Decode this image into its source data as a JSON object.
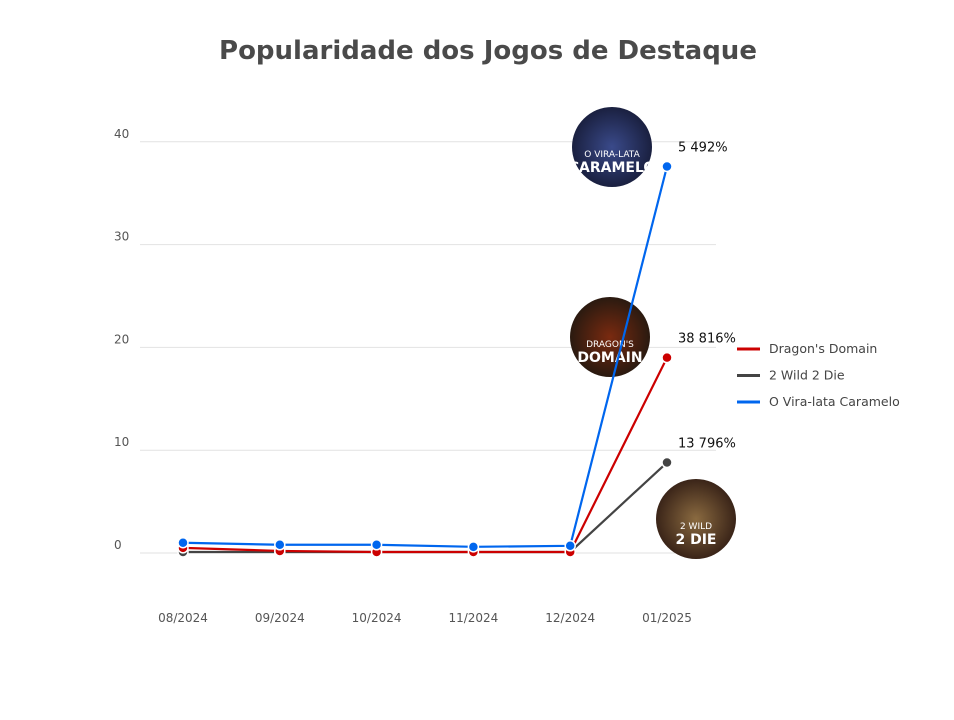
{
  "chart_data": {
    "type": "line",
    "title": "Popularidade dos Jogos de Destaque",
    "xlabel": "",
    "ylabel": "",
    "categories": [
      "08/2024",
      "09/2024",
      "10/2024",
      "11/2024",
      "12/2024",
      "01/2025"
    ],
    "ylim": [
      0,
      40
    ],
    "yticks": [
      0,
      10,
      20,
      30,
      40
    ],
    "grid": true,
    "legend_position": "right",
    "series": [
      {
        "name": "Dragon's Domain",
        "color": "#cc0000",
        "values": [
          0.5,
          0.2,
          0.1,
          0.1,
          0.1,
          19.0
        ],
        "end_label": "38 816%",
        "logo_text": [
          "DRAGON'S",
          "DOMAIN"
        ]
      },
      {
        "name": "2 Wild 2 Die",
        "color": "#444444",
        "values": [
          0.1,
          0.1,
          0.1,
          0.1,
          0.1,
          8.8
        ],
        "end_label": "13 796%",
        "logo_text": [
          "2 WILD",
          "2 DIE"
        ]
      },
      {
        "name": "O Vira-lata Caramelo",
        "color": "#0066ee",
        "values": [
          1.0,
          0.8,
          0.8,
          0.6,
          0.7,
          37.6
        ],
        "end_label": "5 492%",
        "logo_text": [
          "O VIRA-LATA",
          "CARAMELO"
        ]
      }
    ]
  }
}
